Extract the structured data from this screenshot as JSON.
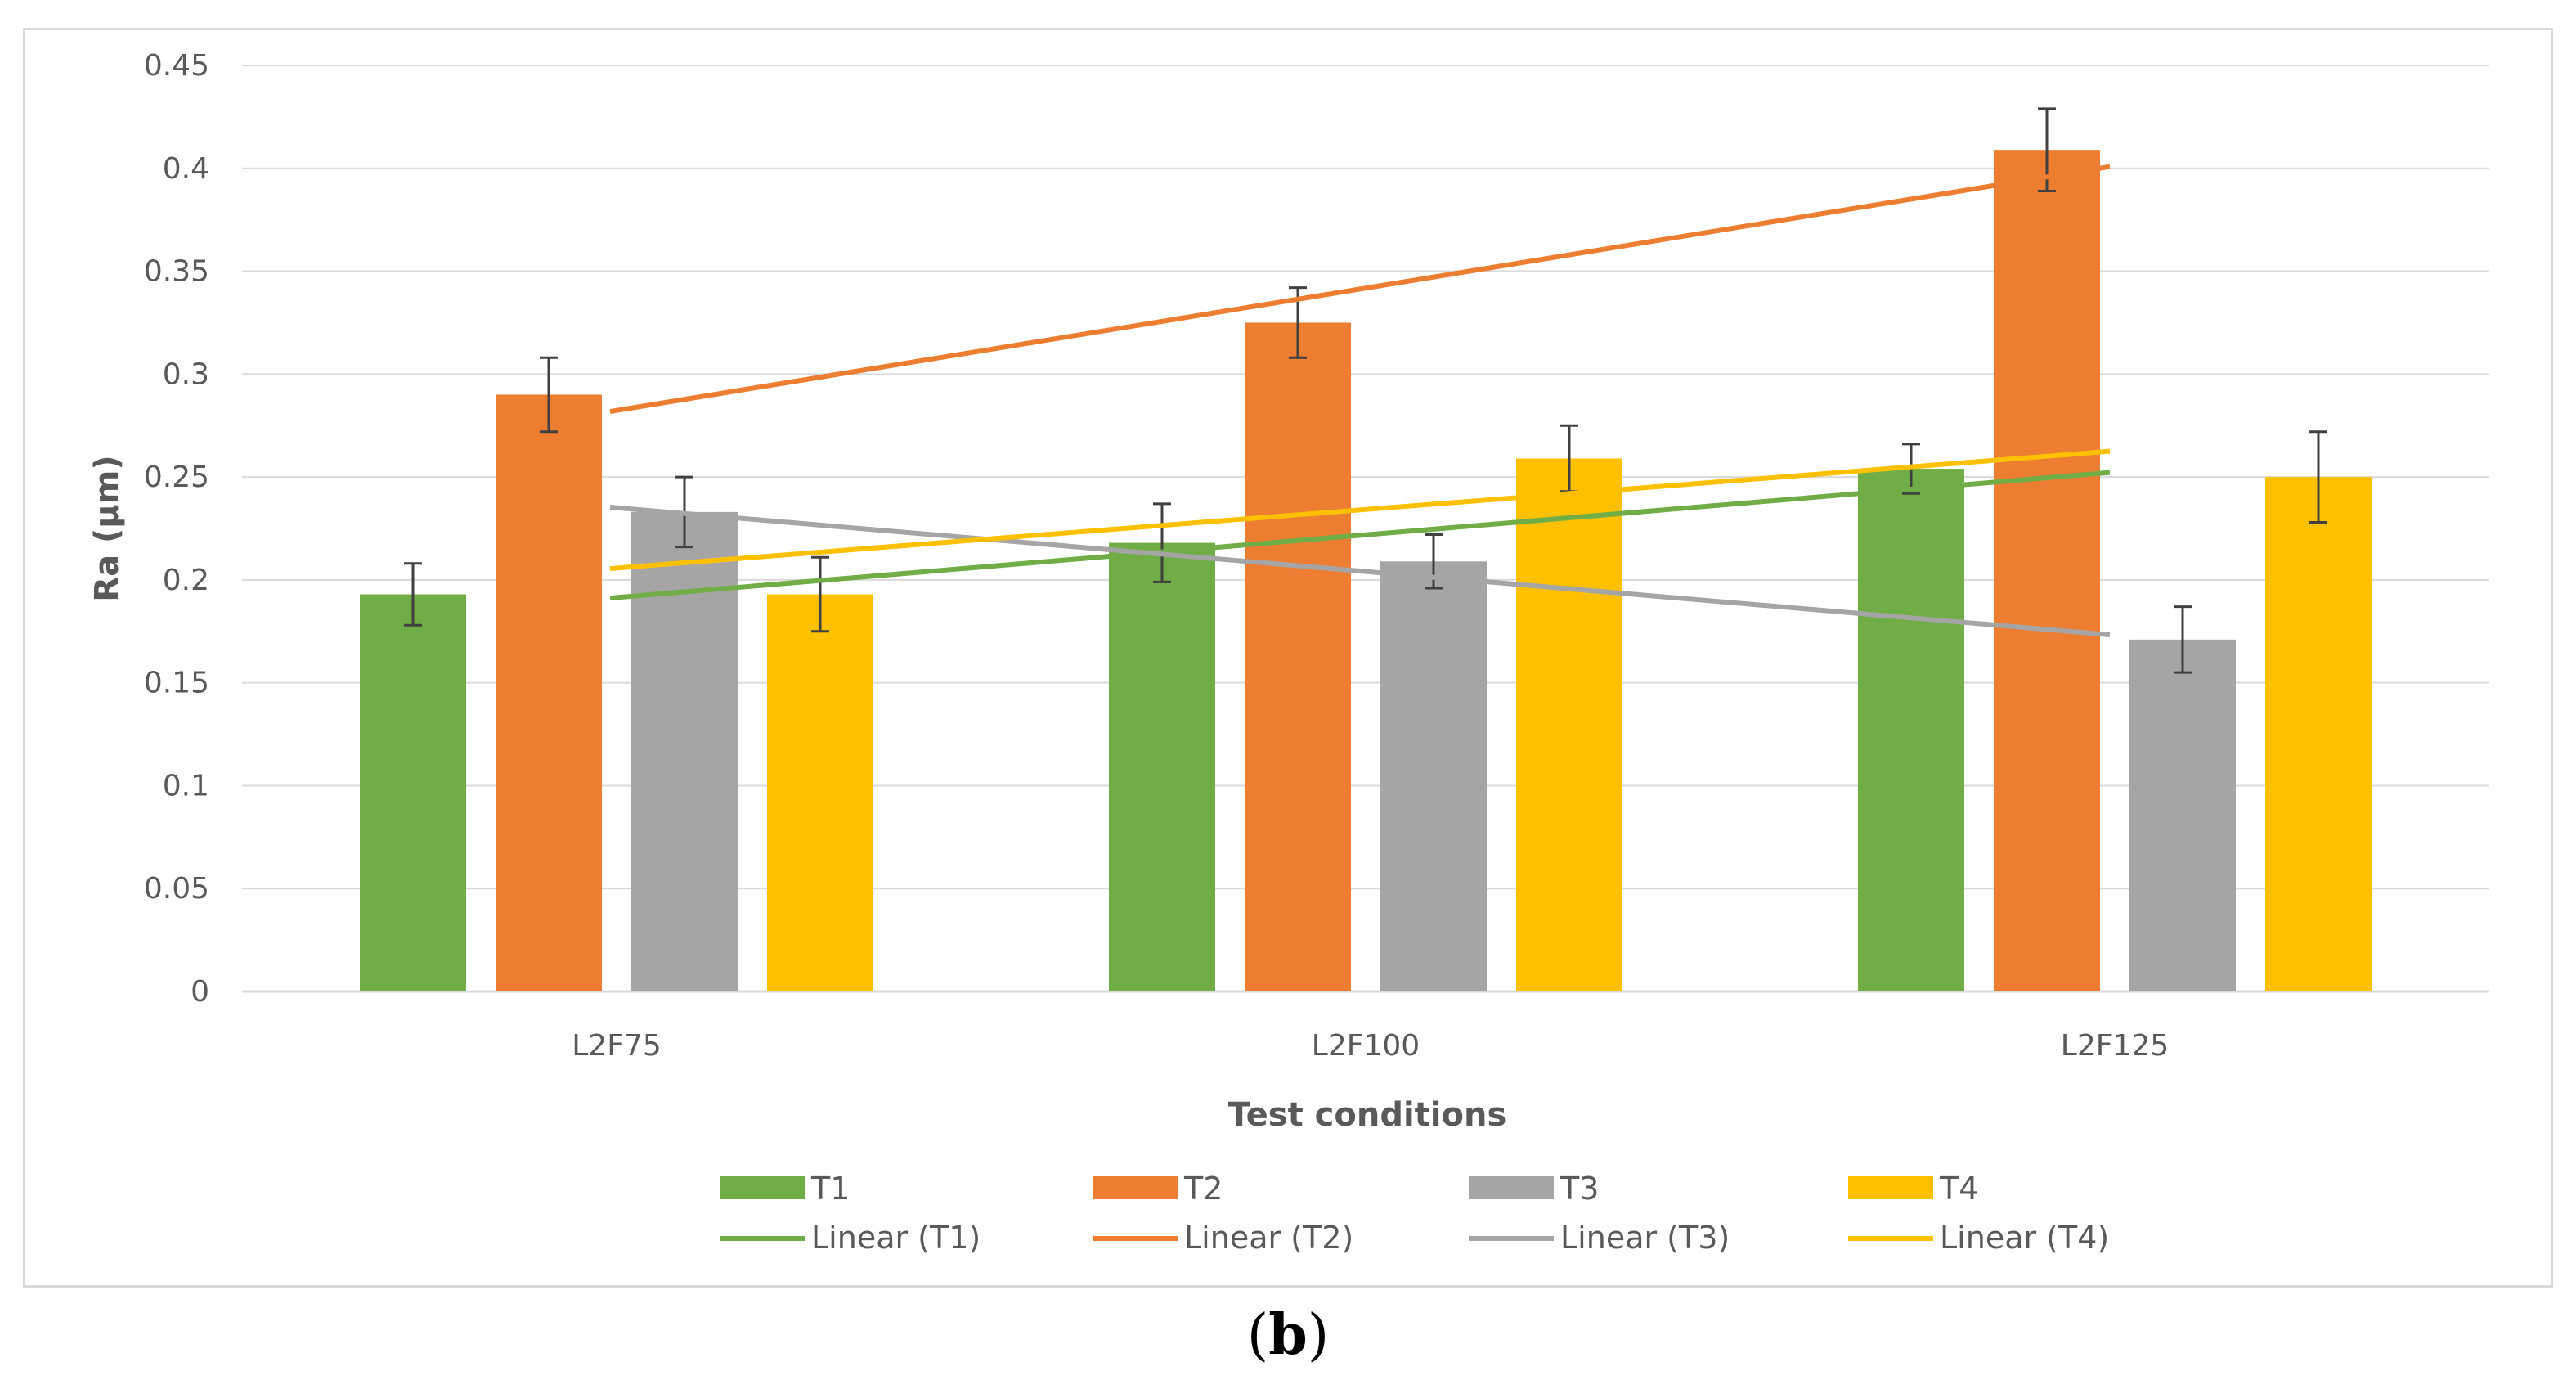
{
  "caption": {
    "open": "(",
    "letter": "b",
    "close": ")"
  },
  "chart_data": {
    "type": "bar",
    "title": "",
    "xlabel": "Test conditions",
    "ylabel": "Ra (μm)",
    "ylim": [
      0,
      0.45
    ],
    "yticks": [
      0,
      0.05,
      0.1,
      0.15,
      0.2,
      0.25,
      0.3,
      0.35,
      0.4,
      0.45
    ],
    "ytick_labels": [
      "0",
      "0.05",
      "0.1",
      "0.15",
      "0.2",
      "0.25",
      "0.3",
      "0.35",
      "0.4",
      "0.45"
    ],
    "grid": true,
    "legend_position": "bottom",
    "categories": [
      "L2F75",
      "L2F100",
      "L2F125"
    ],
    "series": [
      {
        "name": "T1",
        "color": "#70ad47",
        "values": [
          0.193,
          0.218,
          0.254
        ],
        "errors": [
          0.015,
          0.019,
          0.012
        ]
      },
      {
        "name": "T2",
        "color": "#ed7d31",
        "values": [
          0.29,
          0.325,
          0.409
        ],
        "errors": [
          0.018,
          0.017,
          0.02
        ]
      },
      {
        "name": "T3",
        "color": "#a5a5a5",
        "values": [
          0.233,
          0.209,
          0.171
        ],
        "errors": [
          0.017,
          0.013,
          0.016
        ]
      },
      {
        "name": "T4",
        "color": "#ffc000",
        "values": [
          0.193,
          0.259,
          0.25
        ],
        "errors": [
          0.018,
          0.016,
          0.022
        ]
      }
    ],
    "trendlines": [
      {
        "name": "Linear (T1)",
        "color": "#70ad47",
        "series": "T1"
      },
      {
        "name": "Linear (T2)",
        "color": "#ed7d31",
        "series": "T2"
      },
      {
        "name": "Linear (T3)",
        "color": "#a5a5a5",
        "series": "T3"
      },
      {
        "name": "Linear (T4)",
        "color": "#ffc000",
        "series": "T4"
      }
    ]
  }
}
